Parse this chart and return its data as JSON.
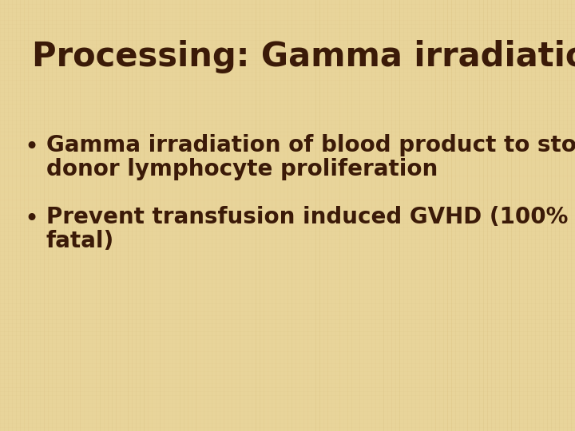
{
  "title": "Processing: Gamma irradiation",
  "bullet1_line1": "Gamma irradiation of blood product to stop",
  "bullet1_line2": "donor lymphocyte proliferation",
  "bullet2_line1": "Prevent transfusion induced GVHD (100%",
  "bullet2_line2": "fatal)",
  "background_color": "#e8d49a",
  "title_color": "#3b1a08",
  "text_color": "#3b1a08",
  "title_fontsize": 30,
  "body_fontsize": 20,
  "title_font_weight": "bold",
  "body_font_weight": "bold"
}
